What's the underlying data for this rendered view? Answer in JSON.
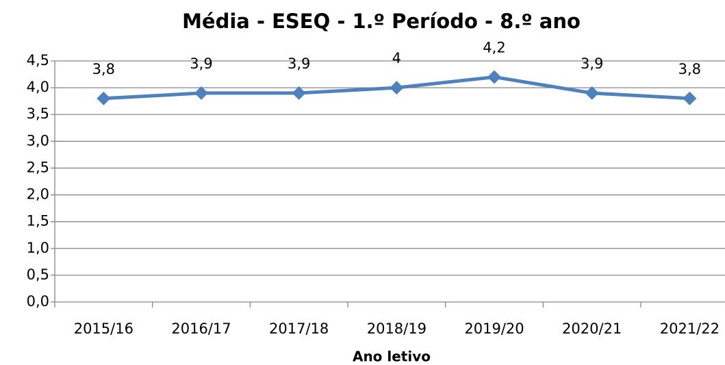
{
  "chart_data": {
    "type": "line",
    "title": "Média - ESEQ - 1.º Período - 8.º ano",
    "x_label": "Ano letivo",
    "categories": [
      "2015/16",
      "2016/17",
      "2017/18",
      "2018/19",
      "2019/20",
      "2020/21",
      "2021/22"
    ],
    "series": [
      {
        "name": "Média",
        "color": "#4f81bd",
        "values": [
          3.8,
          3.9,
          3.9,
          4,
          4.2,
          3.9,
          3.8
        ],
        "value_labels": [
          "3,8",
          "3,9",
          "3,9",
          "4",
          "4,2",
          "3,9",
          "3,8"
        ]
      }
    ],
    "ylim": [
      0,
      4.5
    ],
    "yticks": [
      {
        "value": 0,
        "label": "0,0"
      },
      {
        "value": 0.5,
        "label": "0,5"
      },
      {
        "value": 1,
        "label": "1,0"
      },
      {
        "value": 1.5,
        "label": "1,5"
      },
      {
        "value": 2,
        "label": "2,0"
      },
      {
        "value": 2.5,
        "label": "2,5"
      },
      {
        "value": 3,
        "label": "3,0"
      },
      {
        "value": 3.5,
        "label": "3,5"
      },
      {
        "value": 4,
        "label": "4,0"
      },
      {
        "value": 4.5,
        "label": "4,5"
      }
    ],
    "grid": true
  }
}
